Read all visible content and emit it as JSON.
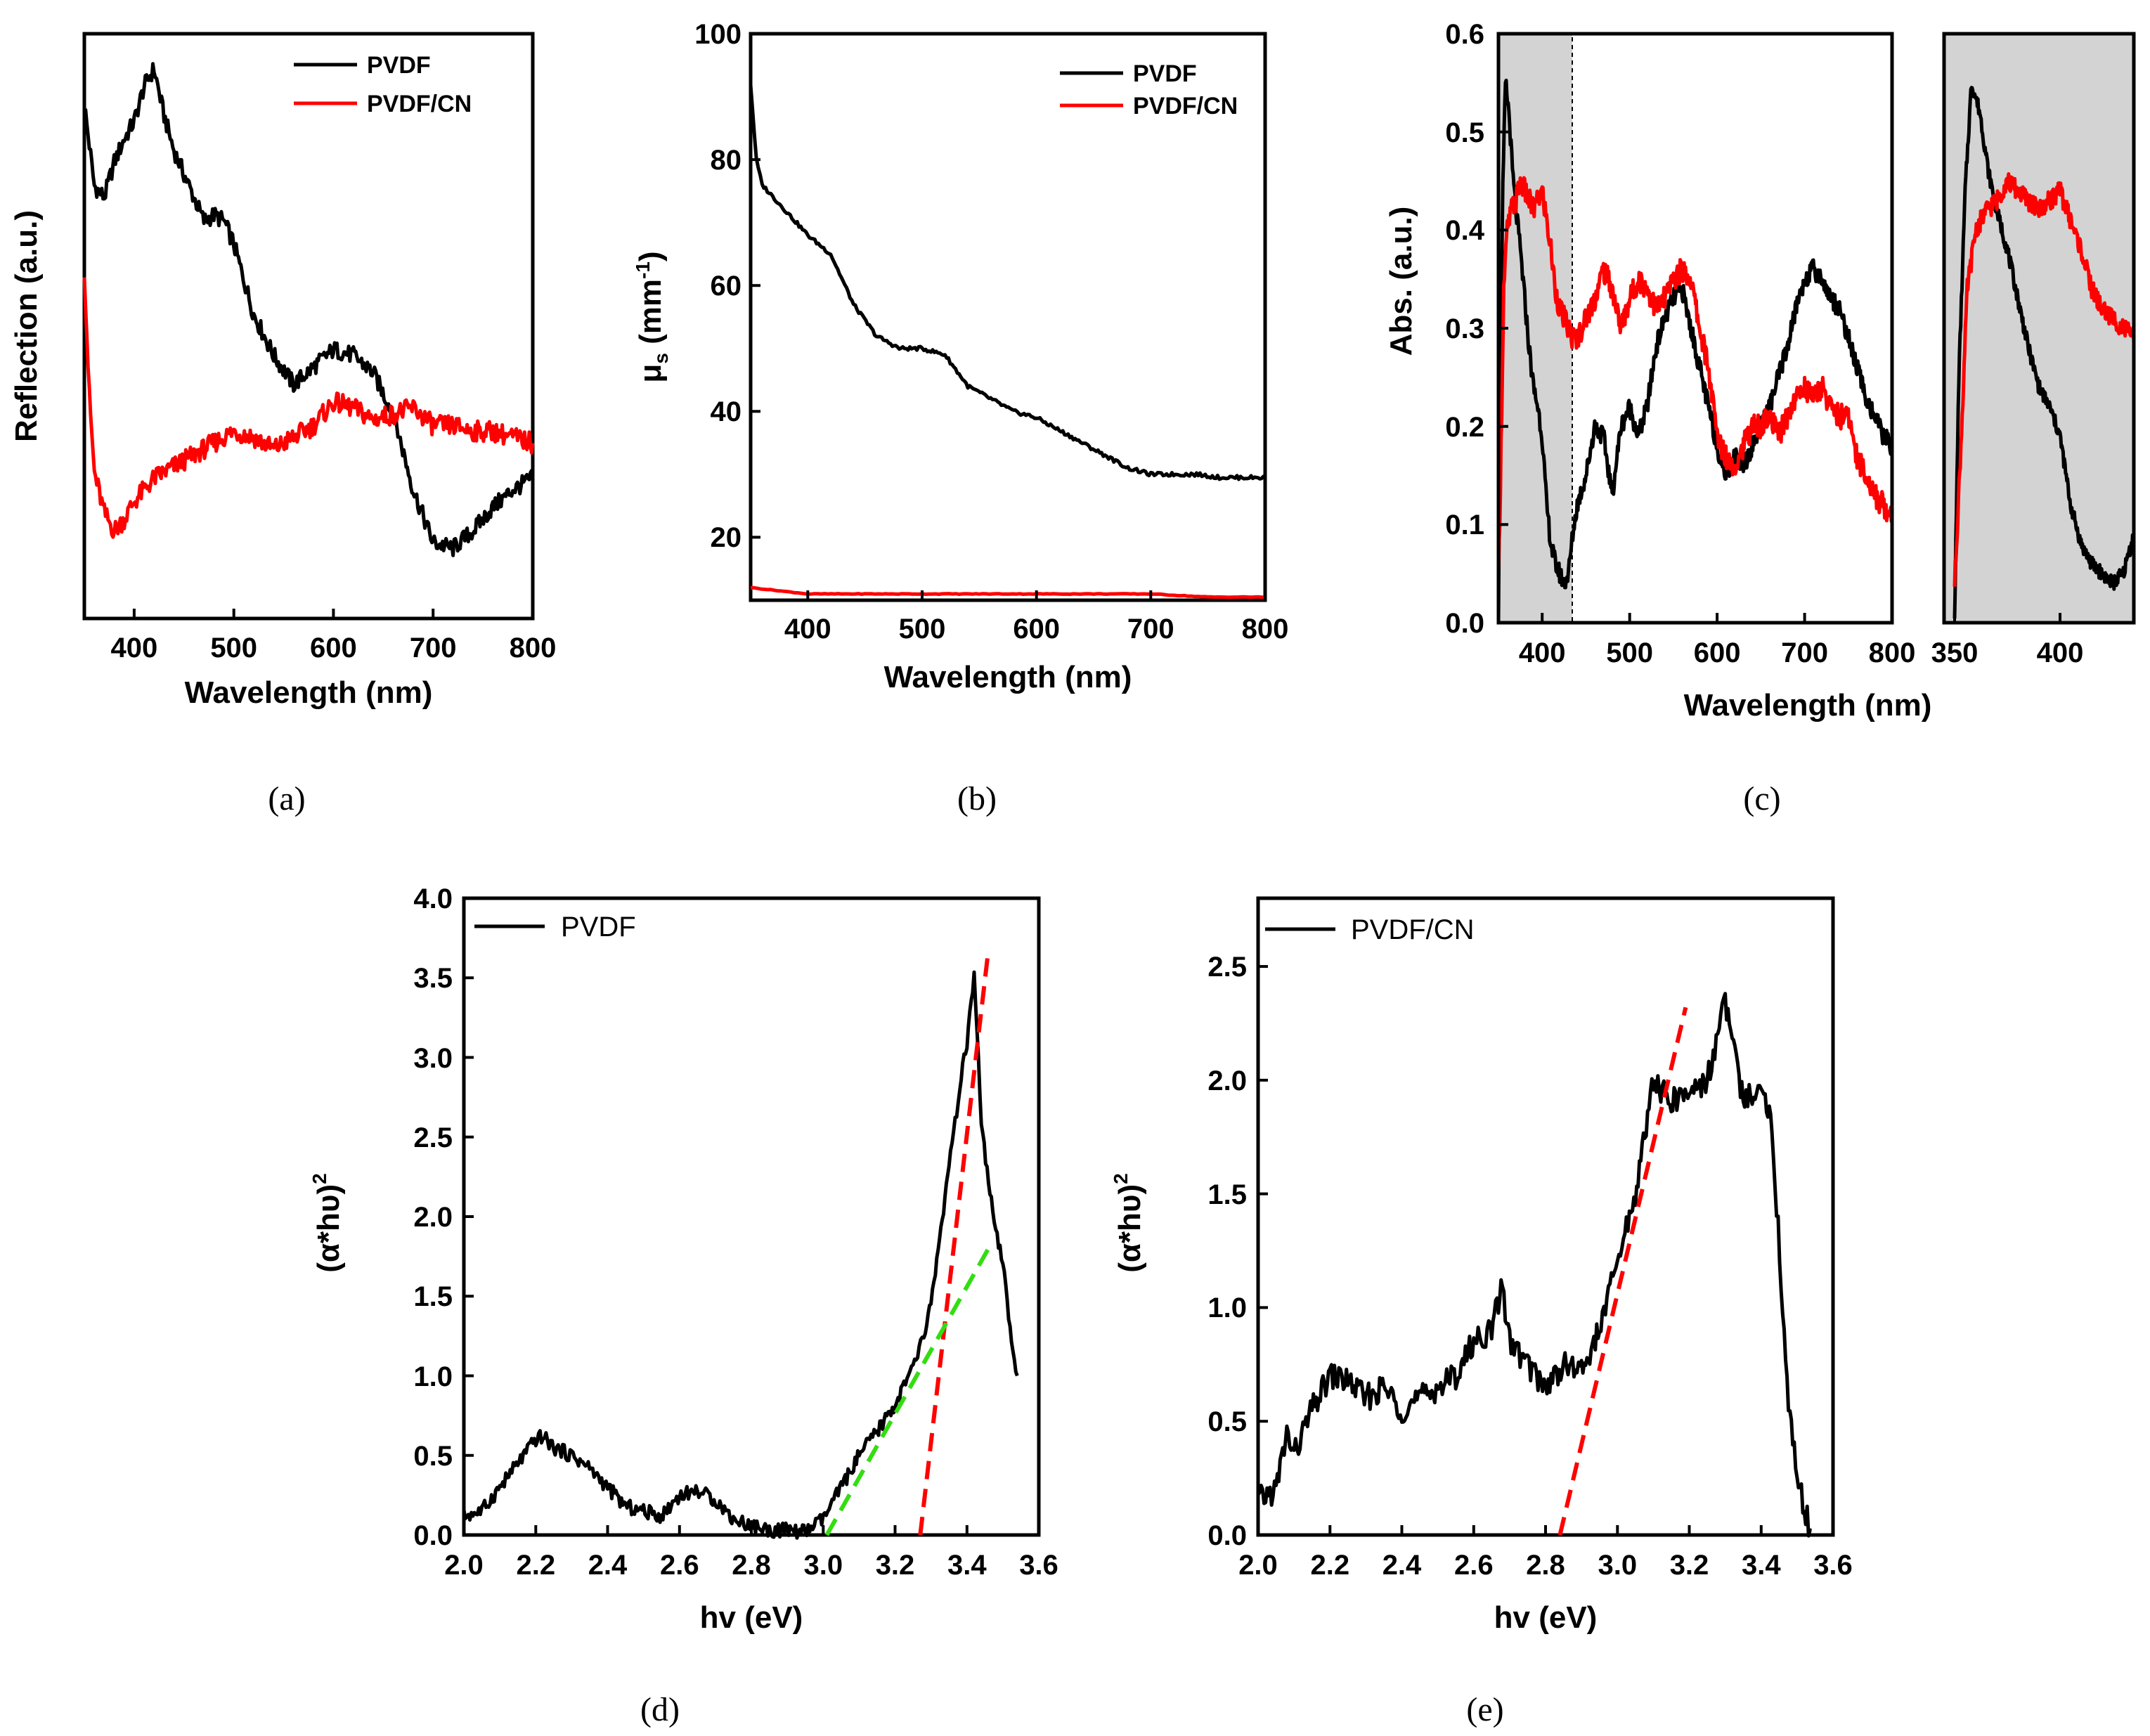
{
  "chart_data": [
    {
      "id": "a",
      "type": "line",
      "caption": "(a)",
      "xlabel": "Wavelength (nm)",
      "ylabel": "Reflection (a.u.)",
      "xlim": [
        350,
        800
      ],
      "ylim": [
        0,
        1
      ],
      "xticks": [
        400,
        500,
        600,
        700,
        800
      ],
      "yticks": [],
      "legend": "top-right",
      "series": [
        {
          "name": "PVDF",
          "color": "#000000",
          "x": [
            350,
            360,
            370,
            380,
            390,
            400,
            410,
            420,
            430,
            440,
            450,
            460,
            470,
            480,
            490,
            500,
            520,
            540,
            560,
            580,
            600,
            620,
            640,
            660,
            680,
            700,
            720,
            740,
            760,
            780,
            800
          ],
          "y": [
            0.88,
            0.74,
            0.72,
            0.78,
            0.82,
            0.85,
            0.91,
            0.94,
            0.86,
            0.8,
            0.76,
            0.72,
            0.68,
            0.69,
            0.68,
            0.64,
            0.52,
            0.45,
            0.4,
            0.43,
            0.46,
            0.45,
            0.42,
            0.35,
            0.22,
            0.13,
            0.12,
            0.15,
            0.19,
            0.22,
            0.24
          ]
        },
        {
          "name": "PVDF/CN",
          "color": "#ff0000",
          "x": [
            350,
            355,
            360,
            370,
            380,
            390,
            400,
            420,
            440,
            460,
            480,
            500,
            520,
            540,
            560,
            580,
            600,
            620,
            640,
            660,
            680,
            700,
            720,
            740,
            760,
            780,
            800
          ],
          "y": [
            0.6,
            0.38,
            0.25,
            0.18,
            0.15,
            0.17,
            0.2,
            0.24,
            0.26,
            0.28,
            0.3,
            0.32,
            0.31,
            0.29,
            0.31,
            0.33,
            0.37,
            0.36,
            0.34,
            0.35,
            0.36,
            0.33,
            0.33,
            0.32,
            0.32,
            0.31,
            0.3
          ]
        }
      ]
    },
    {
      "id": "b",
      "type": "line",
      "caption": "(b)",
      "xlabel": "Wavelength (nm)",
      "ylabel": "μs (mm-1)",
      "ylabel_parts": {
        "mu": "μ",
        "sub": "s",
        "mid": " (mm",
        "sup": "-1",
        "end": ")"
      },
      "xlim": [
        350,
        800
      ],
      "ylim": [
        10,
        100
      ],
      "xticks": [
        400,
        500,
        600,
        700,
        800
      ],
      "yticks": [
        20,
        40,
        60,
        80,
        100
      ],
      "legend": "top-right",
      "series": [
        {
          "name": "PVDF",
          "color": "#000000",
          "x": [
            350,
            355,
            360,
            380,
            400,
            420,
            440,
            460,
            480,
            500,
            520,
            540,
            560,
            580,
            600,
            620,
            640,
            660,
            680,
            700,
            720,
            740,
            760,
            780,
            800
          ],
          "y": [
            92,
            80,
            76,
            72,
            68,
            65,
            57,
            52,
            50,
            50,
            49,
            44,
            42,
            40,
            39,
            37,
            35,
            33,
            31,
            30,
            30,
            30,
            29.5,
            29.5,
            29.5
          ]
        },
        {
          "name": "PVDF/CN",
          "color": "#ff0000",
          "x": [
            350,
            400,
            450,
            500,
            550,
            600,
            650,
            700,
            750,
            800
          ],
          "y": [
            12,
            11,
            11,
            11,
            11,
            11,
            11,
            11,
            10.5,
            10.5
          ]
        }
      ]
    },
    {
      "id": "c",
      "type": "line",
      "caption": "(c)",
      "xlabel": "Wavelength (nm)",
      "ylabel": "Abs. (a.u.)",
      "xlim": [
        350,
        800
      ],
      "ylim": [
        0,
        0.6
      ],
      "xticks": [
        400,
        500,
        600,
        700,
        800
      ],
      "yticks": [
        0.0,
        0.1,
        0.2,
        0.3,
        0.4,
        0.5,
        0.6
      ],
      "ytick_labels": [
        "0.0",
        "0.1",
        "0.2",
        "0.3",
        "0.4",
        "0.5",
        "0.6"
      ],
      "highlight_range": [
        350,
        435
      ],
      "inset": {
        "xlim": [
          345,
          435
        ],
        "xticks": [
          350,
          400
        ]
      },
      "series": [
        {
          "name": "PVDF",
          "color": "#000000",
          "x": [
            350,
            352,
            355,
            358,
            362,
            366,
            370,
            375,
            380,
            385,
            390,
            395,
            400,
            405,
            410,
            415,
            420,
            425,
            430,
            435,
            440,
            450,
            460,
            470,
            480,
            490,
            500,
            510,
            520,
            530,
            540,
            550,
            560,
            570,
            580,
            590,
            600,
            610,
            620,
            630,
            640,
            650,
            660,
            670,
            680,
            690,
            700,
            710,
            720,
            730,
            740,
            750,
            760,
            770,
            780,
            790,
            800
          ],
          "y": [
            0.01,
            0.25,
            0.44,
            0.55,
            0.52,
            0.46,
            0.42,
            0.38,
            0.33,
            0.28,
            0.24,
            0.22,
            0.19,
            0.12,
            0.08,
            0.06,
            0.05,
            0.04,
            0.05,
            0.09,
            0.12,
            0.15,
            0.2,
            0.19,
            0.13,
            0.2,
            0.22,
            0.19,
            0.22,
            0.28,
            0.31,
            0.33,
            0.34,
            0.3,
            0.26,
            0.22,
            0.18,
            0.15,
            0.17,
            0.16,
            0.18,
            0.2,
            0.22,
            0.25,
            0.28,
            0.32,
            0.35,
            0.36,
            0.35,
            0.33,
            0.32,
            0.29,
            0.26,
            0.23,
            0.21,
            0.19,
            0.18
          ]
        },
        {
          "name": "PVDF/CN",
          "color": "#ff0000",
          "x": [
            350,
            353,
            356,
            360,
            365,
            370,
            375,
            380,
            385,
            390,
            395,
            400,
            405,
            410,
            415,
            420,
            425,
            430,
            435,
            440,
            450,
            460,
            470,
            480,
            490,
            500,
            510,
            520,
            530,
            540,
            550,
            560,
            570,
            580,
            590,
            600,
            610,
            620,
            630,
            640,
            650,
            660,
            670,
            680,
            690,
            700,
            710,
            720,
            730,
            740,
            750,
            760,
            770,
            780,
            790,
            800
          ],
          "y": [
            0.04,
            0.18,
            0.34,
            0.4,
            0.42,
            0.43,
            0.45,
            0.44,
            0.43,
            0.42,
            0.43,
            0.44,
            0.41,
            0.38,
            0.34,
            0.32,
            0.31,
            0.3,
            0.29,
            0.29,
            0.31,
            0.33,
            0.36,
            0.34,
            0.3,
            0.33,
            0.35,
            0.34,
            0.32,
            0.33,
            0.35,
            0.36,
            0.35,
            0.3,
            0.26,
            0.19,
            0.17,
            0.16,
            0.18,
            0.2,
            0.2,
            0.21,
            0.19,
            0.21,
            0.23,
            0.24,
            0.23,
            0.24,
            0.22,
            0.21,
            0.21,
            0.17,
            0.15,
            0.13,
            0.12,
            0.11
          ]
        }
      ]
    },
    {
      "id": "d",
      "type": "line",
      "caption": "(d)",
      "xlabel": "hv (eV)",
      "ylabel": "(α*hυ)2",
      "ylabel_parts": {
        "base": "(α*hυ)",
        "sup": "2"
      },
      "xlim": [
        2.0,
        3.6
      ],
      "ylim": [
        0.0,
        4.0
      ],
      "xticks": [
        2.0,
        2.2,
        2.4,
        2.6,
        2.8,
        3.0,
        3.2,
        3.4,
        3.6
      ],
      "xtick_labels": [
        "2.0",
        "2.2",
        "2.4",
        "2.6",
        "2.8",
        "3.0",
        "3.2",
        "3.4",
        "3.6"
      ],
      "yticks": [
        0.0,
        0.5,
        1.0,
        1.5,
        2.0,
        2.5,
        3.0,
        3.5,
        4.0
      ],
      "ytick_labels": [
        "0.0",
        "0.5",
        "1.0",
        "1.5",
        "2.0",
        "2.5",
        "3.0",
        "3.5",
        "4.0"
      ],
      "legend": "top-left",
      "series": [
        {
          "name": "PVDF",
          "color": "#000000",
          "x": [
            2.0,
            2.05,
            2.1,
            2.15,
            2.2,
            2.22,
            2.25,
            2.3,
            2.35,
            2.4,
            2.45,
            2.5,
            2.55,
            2.6,
            2.65,
            2.7,
            2.75,
            2.8,
            2.85,
            2.9,
            2.95,
            3.0,
            3.05,
            3.1,
            3.15,
            3.2,
            3.25,
            3.28,
            3.3,
            3.32,
            3.35,
            3.38,
            3.4,
            3.42,
            3.44,
            3.46,
            3.48,
            3.5,
            3.52,
            3.54
          ],
          "y": [
            0.12,
            0.15,
            0.3,
            0.45,
            0.6,
            0.62,
            0.55,
            0.5,
            0.42,
            0.3,
            0.18,
            0.15,
            0.12,
            0.25,
            0.28,
            0.22,
            0.1,
            0.06,
            0.03,
            0.03,
            0.02,
            0.1,
            0.3,
            0.5,
            0.65,
            0.82,
            1.05,
            1.25,
            1.45,
            1.8,
            2.3,
            2.8,
            3.1,
            3.5,
            2.6,
            2.2,
            1.9,
            1.7,
            1.3,
            1.0
          ]
        }
      ],
      "fit_lines": [
        {
          "color": "#ff0000",
          "x": [
            3.27,
            3.46
          ],
          "y": [
            0.0,
            3.68
          ]
        },
        {
          "color": "#33dd11",
          "x": [
            3.01,
            3.46
          ],
          "y": [
            0.0,
            1.8
          ]
        }
      ]
    },
    {
      "id": "e",
      "type": "line",
      "caption": "(e)",
      "xlabel": "hv (eV)",
      "ylabel": "(α*hυ)2",
      "ylabel_parts": {
        "base": "(α*hυ)",
        "sup": "2"
      },
      "xlim": [
        2.0,
        3.6
      ],
      "ylim": [
        0.0,
        2.8
      ],
      "xticks": [
        2.0,
        2.2,
        2.4,
        2.6,
        2.8,
        3.0,
        3.2,
        3.4,
        3.6
      ],
      "xtick_labels": [
        "2.0",
        "2.2",
        "2.4",
        "2.6",
        "2.8",
        "3.0",
        "3.2",
        "3.4",
        "3.6"
      ],
      "yticks": [
        0.0,
        0.5,
        1.0,
        1.5,
        2.0,
        2.5
      ],
      "ytick_labels": [
        "0.0",
        "0.5",
        "1.0",
        "1.5",
        "2.0",
        "2.5"
      ],
      "legend": "top-left",
      "series": [
        {
          "name": "PVDF/CN",
          "color": "#000000",
          "x": [
            2.0,
            2.05,
            2.08,
            2.1,
            2.15,
            2.2,
            2.25,
            2.3,
            2.35,
            2.4,
            2.45,
            2.5,
            2.55,
            2.6,
            2.65,
            2.68,
            2.7,
            2.75,
            2.8,
            2.85,
            2.9,
            2.95,
            3.0,
            3.05,
            3.08,
            3.1,
            3.15,
            3.2,
            3.25,
            3.3,
            3.35,
            3.4,
            3.43,
            3.46,
            3.48,
            3.5,
            3.52,
            3.54
          ],
          "y": [
            0.15,
            0.2,
            0.45,
            0.35,
            0.55,
            0.7,
            0.68,
            0.6,
            0.65,
            0.55,
            0.6,
            0.65,
            0.7,
            0.85,
            0.9,
            1.1,
            0.85,
            0.75,
            0.65,
            0.75,
            0.72,
            0.9,
            1.2,
            1.5,
            1.8,
            2.0,
            1.9,
            1.95,
            2.0,
            2.35,
            1.9,
            2.0,
            1.8,
            1.0,
            0.5,
            0.3,
            0.1,
            0.02
          ]
        }
      ],
      "fit_lines": [
        {
          "color": "#ff0000",
          "x": [
            2.84,
            3.19
          ],
          "y": [
            0.0,
            2.32
          ]
        }
      ]
    }
  ]
}
